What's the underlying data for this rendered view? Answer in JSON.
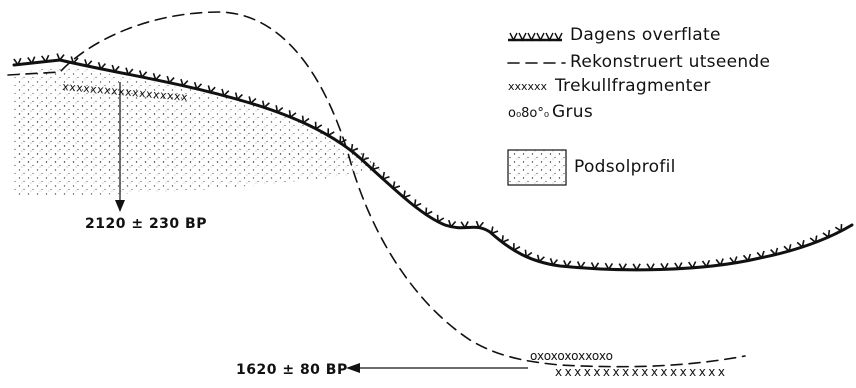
{
  "legend": {
    "present_surface": "Dagens overflate",
    "reconstructed": "Rekonstruert utseende",
    "charcoal": "Trekullfragmenter",
    "gravel": "Grus",
    "podzol": "Podsolprofil",
    "charcoal_symbol": "xxxxxx",
    "gravel_symbol": "o₀8o°₀"
  },
  "dates": {
    "upper": "2120 ± 230 BP",
    "lower": "1620 ± 80 BP"
  },
  "symbols": {
    "charcoal_mark": "xxxxxxxxxxxxxxxxxx",
    "gravel_mark": "oxoxoxoxxoxo"
  }
}
